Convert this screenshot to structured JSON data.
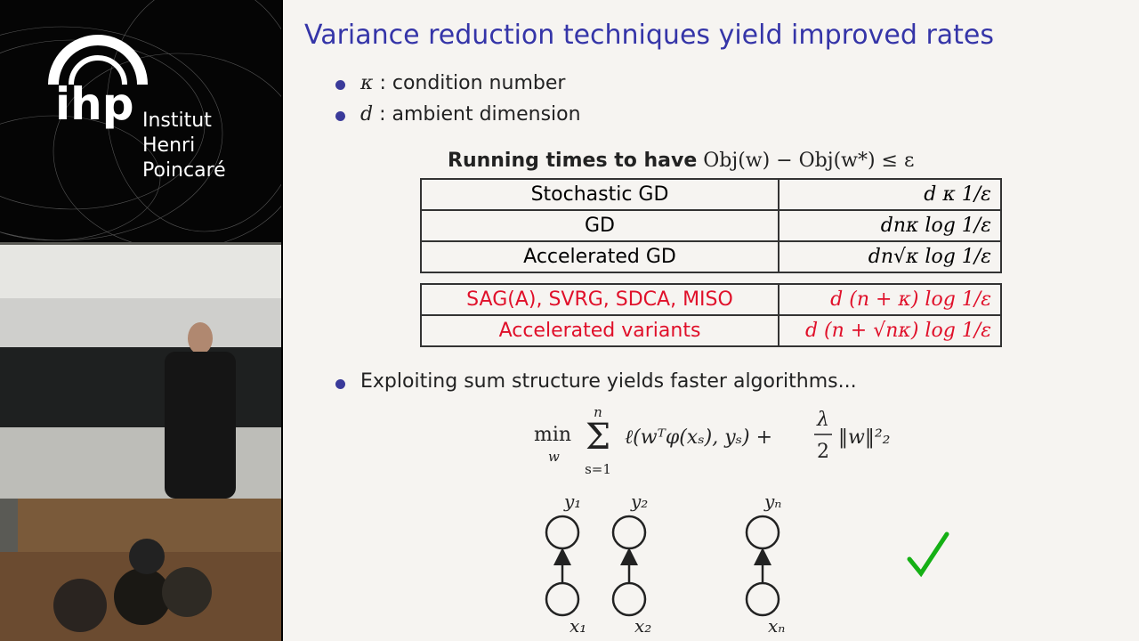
{
  "logo": {
    "mark": "ihp",
    "lines": [
      "Institut",
      "Henri",
      "Poincaré"
    ]
  },
  "slide": {
    "title": "Variance reduction techniques yield improved rates",
    "bullets": [
      {
        "symbol": "κ",
        "text": ": condition number"
      },
      {
        "symbol": "d",
        "text": ": ambient dimension"
      }
    ],
    "table": {
      "caption": "Running times to have",
      "caption_math": "Obj(w) − Obj(w*) ≤ ε",
      "rows": [
        [
          "Stochastic GD",
          "d κ 1/ε"
        ],
        [
          "GD",
          "dnκ log 1/ε"
        ],
        [
          "Accelerated GD",
          "dn√κ log 1/ε"
        ]
      ],
      "highlighted_rows": [
        [
          "SAG(A), SVRG, SDCA, MISO",
          "d (n + κ) log 1/ε"
        ],
        [
          "Accelerated variants",
          "d (n + √nκ) log 1/ε"
        ]
      ]
    },
    "bullet2": "Exploiting sum structure yields faster algorithms...",
    "formula": {
      "min": "min",
      "under": "w",
      "sum_top": "n",
      "sum": "Σ",
      "sum_bottom": "s=1",
      "body": "ℓ(wᵀφ(xₛ), yₛ) +",
      "frac_top": "λ",
      "frac_bottom": "2",
      "tail": "‖w‖²₂"
    },
    "graph": {
      "top": [
        "y₁",
        "y₂",
        "yₙ"
      ],
      "bottom": [
        "x₁",
        "x₂",
        "xₙ"
      ]
    }
  }
}
